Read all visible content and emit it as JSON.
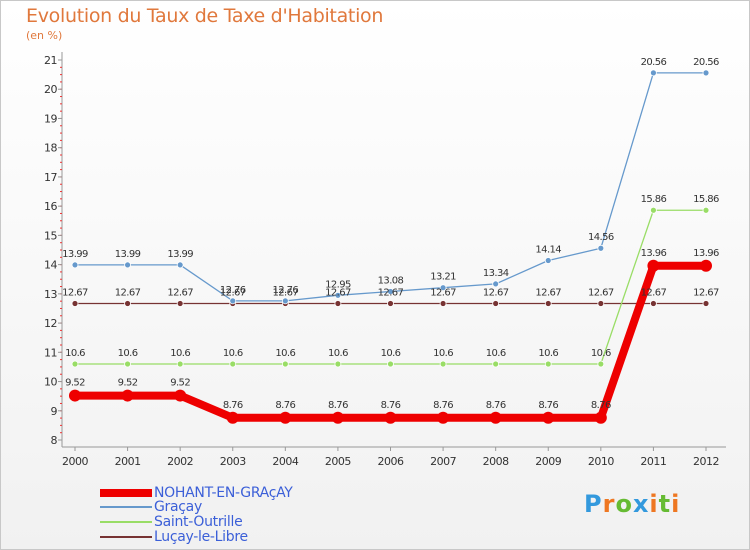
{
  "chart_data": {
    "type": "line",
    "title": "Evolution du Taux de Taxe d'Habitation",
    "subtitle": "(en %)",
    "x": [
      "2000",
      "2001",
      "2002",
      "2003",
      "2004",
      "2005",
      "2006",
      "2007",
      "2008",
      "2009",
      "2010",
      "2011",
      "2012"
    ],
    "ylim": [
      8,
      21
    ],
    "yticks": [
      "8",
      "9",
      "10",
      "11",
      "12",
      "13",
      "14",
      "15",
      "16",
      "17",
      "18",
      "19",
      "20",
      "21"
    ],
    "grid": false,
    "legend_position": "bottom-left",
    "series": [
      {
        "name": "NOHANT-EN-GRAçAY",
        "color": "#ee0000",
        "values": [
          9.52,
          9.52,
          9.52,
          8.76,
          8.76,
          8.76,
          8.76,
          8.76,
          8.76,
          8.76,
          8.76,
          13.96,
          13.96
        ],
        "labels": [
          "9.52",
          "9.52",
          "9.52",
          "8.76",
          "8.76",
          "8.76",
          "8.76",
          "8.76",
          "8.76",
          "8.76",
          "8.76",
          "13.96",
          "13.96"
        ]
      },
      {
        "name": "Graçay",
        "color": "#6699cc",
        "values": [
          13.99,
          13.99,
          13.99,
          12.76,
          12.76,
          12.95,
          13.08,
          13.21,
          13.34,
          14.14,
          14.56,
          20.56,
          20.56
        ],
        "labels": [
          "13.99",
          "13.99",
          "13.99",
          "12.76",
          "12.76",
          "12.95",
          "13.08",
          "13.21",
          "13.34",
          "14.14",
          "14.56",
          "20.56",
          "20.56"
        ]
      },
      {
        "name": "Saint-Outrille",
        "color": "#99dd66",
        "values": [
          10.6,
          10.6,
          10.6,
          10.6,
          10.6,
          10.6,
          10.6,
          10.6,
          10.6,
          10.6,
          10.6,
          15.86,
          15.86
        ],
        "labels": [
          "10.6",
          "10.6",
          "10.6",
          "10.6",
          "10.6",
          "10.6",
          "10.6",
          "10.6",
          "10.6",
          "10.6",
          "10.6",
          "15.86",
          "15.86"
        ]
      },
      {
        "name": "Luçay-le-Libre",
        "color": "#773333",
        "values": [
          12.67,
          12.67,
          12.67,
          12.67,
          12.67,
          12.67,
          12.67,
          12.67,
          12.67,
          12.67,
          12.67,
          12.67,
          12.67
        ],
        "labels": [
          "12.67",
          "12.67",
          "12.67",
          "12.67",
          "12.67",
          "12.67",
          "12.67",
          "12.67",
          "12.67",
          "12.67",
          "12.67",
          "12.67",
          "12.67"
        ]
      }
    ]
  },
  "logo": {
    "letters": [
      "P",
      "r",
      "o",
      "x",
      "i",
      "t",
      "i"
    ],
    "colors": [
      "#3399dd",
      "#ee7722",
      "#66bb33",
      "#3399dd",
      "#ee7722",
      "#66bb33",
      "#ee7722"
    ]
  }
}
